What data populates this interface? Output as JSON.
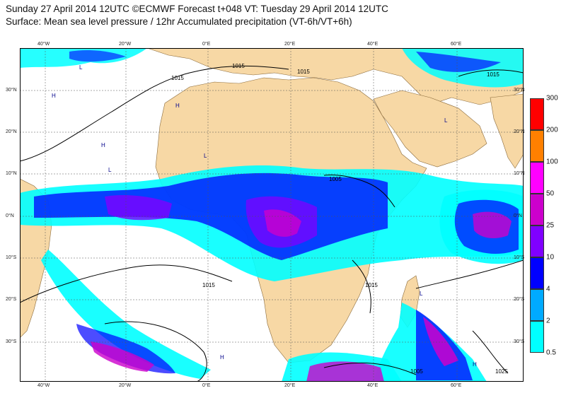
{
  "header": {
    "title_line1": "Sunday 27 April 2014 12UTC ©ECMWF Forecast t+048 VT: Tuesday 29 April 2014 12UTC",
    "title_line2": "Surface: Mean sea level pressure / 12hr Accumulated precipitation (VT-6h/VT+6h)"
  },
  "map": {
    "longitude_labels_top": [
      "40°W",
      "20°W",
      "0°E",
      "20°E",
      "40°E",
      "60°E"
    ],
    "longitude_labels_bottom": [
      "40°W",
      "20°W",
      "0°E",
      "20°E",
      "40°E",
      "60°E"
    ],
    "latitude_labels_left": [
      "30°N",
      "20°N",
      "10°N",
      "0°N",
      "10°S",
      "20°S",
      "30°S"
    ],
    "latitude_labels_right": [
      "30°N",
      "20°N",
      "10°N",
      "0°N",
      "10°S",
      "20°S",
      "30°S"
    ],
    "land_color": "#f7d8a5",
    "ocean_color": "#ffffff",
    "isobar_labels": [
      "1015",
      "1015",
      "1015",
      "1005",
      "1015",
      "1015",
      "1015",
      "1025",
      "1005"
    ],
    "pressure_center_label": "L",
    "high_center_label": "H"
  },
  "legend": {
    "labels": [
      "300",
      "200",
      "100",
      "50",
      "25",
      "10",
      "4",
      "2",
      "0.5"
    ],
    "colors": [
      "#ff0000",
      "#ff8000",
      "#ff00ff",
      "#cc00cc",
      "#8000ff",
      "#0000ff",
      "#00aaff",
      "#00ffff",
      "#00ffff"
    ]
  }
}
